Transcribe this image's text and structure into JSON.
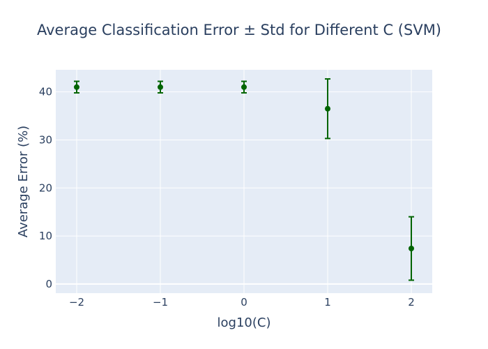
{
  "chart_data": {
    "type": "scatter",
    "title": "Average Classification Error ± Std for Different C (SVM)",
    "xlabel": "log10(C)",
    "ylabel": "Average Error (%)",
    "x": [
      -2,
      -1,
      0,
      1,
      2
    ],
    "x_tick_labels": [
      "−2",
      "−1",
      "0",
      "1",
      "2"
    ],
    "y_tick_labels": [
      "0",
      "10",
      "20",
      "30",
      "40"
    ],
    "y_ticks": [
      0,
      10,
      20,
      30,
      40
    ],
    "xlim": [
      -2.25,
      2.25
    ],
    "ylim": [
      -1.9,
      44.6
    ],
    "series": [
      {
        "values": [
          41.0,
          41.0,
          41.0,
          36.5,
          7.4
        ],
        "error": [
          1.2,
          1.2,
          1.2,
          6.2,
          6.6
        ],
        "color": "#006400"
      }
    ],
    "grid": true,
    "background_color": "#e5ecf6"
  }
}
